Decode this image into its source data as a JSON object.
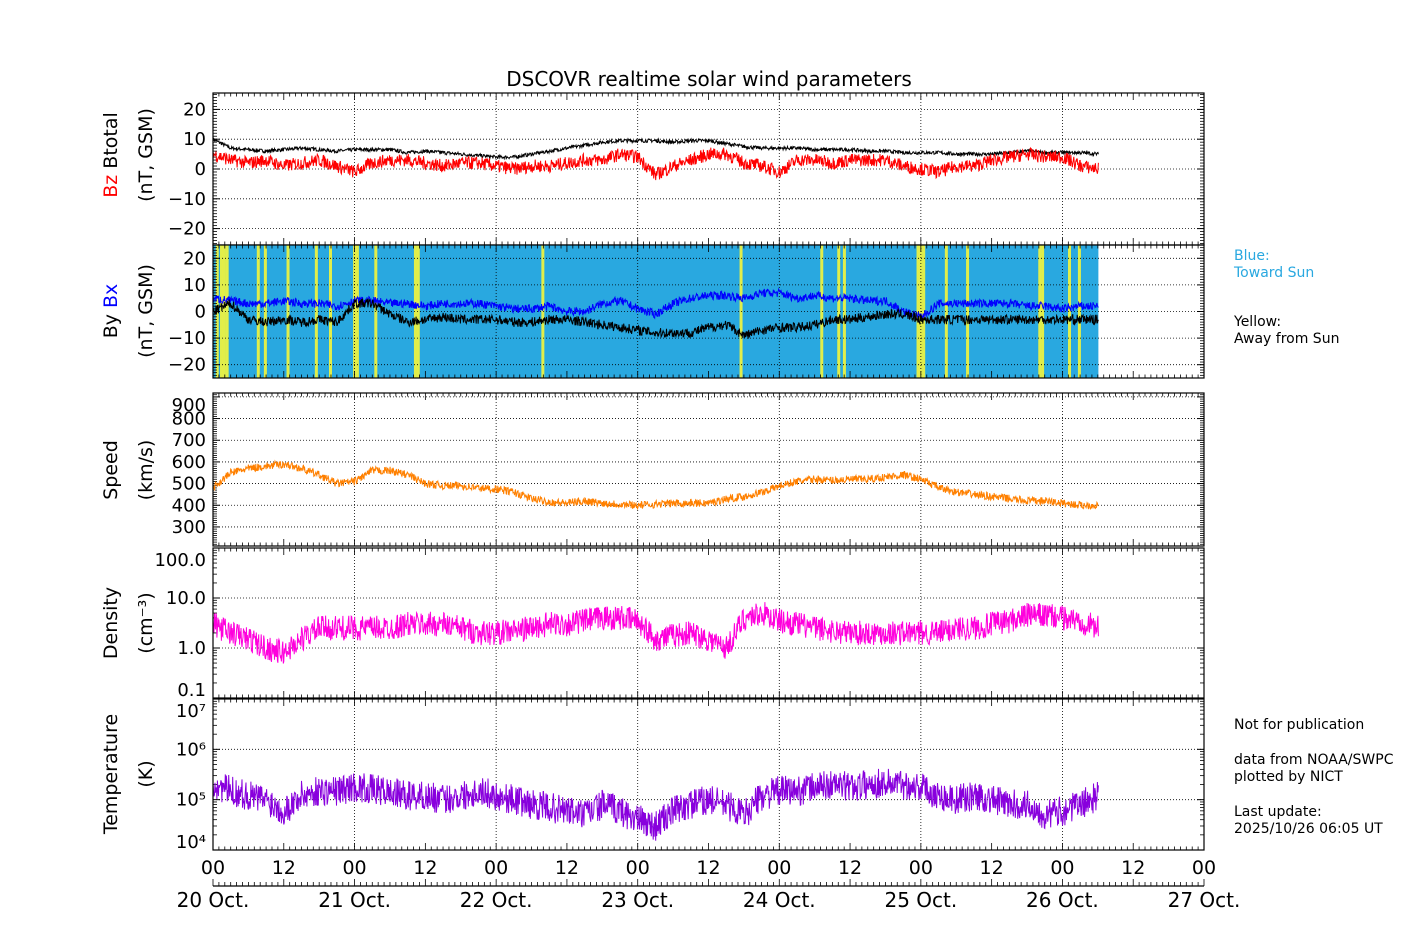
{
  "chart_data": {
    "type": "line",
    "title": "DSCOVR realtime solar wind parameters",
    "x_axis": {
      "unit": "days since 20 Oct 00 UT",
      "range": [
        0,
        7
      ],
      "hour_tick_labels": [
        "00",
        "12",
        "00",
        "12",
        "00",
        "12",
        "00",
        "12",
        "00",
        "12",
        "00",
        "12",
        "00",
        "12",
        "00"
      ],
      "date_labels": [
        "20 Oct.",
        "21 Oct.",
        "22 Oct.",
        "23 Oct.",
        "24 Oct.",
        "25 Oct.",
        "26 Oct.",
        "27 Oct."
      ],
      "data_end_day": 6.254
    },
    "panels": [
      {
        "id": "btotal_bz",
        "ylabel_parts": [
          {
            "text": "Bz",
            "color": "#ff0000"
          },
          {
            "text": "Btotal",
            "color": "#000000"
          }
        ],
        "ylabel_unit": "(nT, GSM)",
        "scale": "linear",
        "ylim": [
          -25.5,
          25.5
        ],
        "ticks": [
          20,
          10,
          0,
          -10,
          -20
        ],
        "tick_labels": [
          "20",
          "10",
          "0",
          "−10",
          "−20"
        ],
        "series": [
          {
            "name": "Btotal",
            "color": "#000000",
            "values": [
              10,
              7,
              6.5,
              6,
              6.5,
              7,
              6.5,
              6,
              6.5,
              6.5,
              6.5,
              5.5,
              6,
              5.5,
              5,
              4.5,
              4,
              4,
              5,
              6,
              7,
              8,
              9,
              9.5,
              9.5,
              9.5,
              9,
              9.5,
              9.5,
              8.5,
              7.5,
              7,
              7,
              7,
              6.5,
              6.5,
              6.5,
              6,
              6,
              5.5,
              5.5,
              5.5,
              5,
              5,
              5,
              5.5,
              6,
              5.5,
              5.5,
              5.5,
              5
            ]
          },
          {
            "name": "Bz",
            "color": "#ff0000",
            "values": [
              5,
              3,
              2,
              3,
              1,
              2,
              3,
              1,
              -1,
              2,
              3,
              3,
              2,
              1,
              2,
              2,
              1,
              0,
              1,
              1,
              2,
              3,
              3,
              5,
              4,
              -2,
              1,
              3,
              5,
              5,
              2,
              1,
              -1,
              3,
              3,
              2,
              3,
              3,
              3,
              1,
              0,
              -1,
              1,
              1,
              3,
              4,
              5,
              4,
              4,
              1,
              0
            ]
          }
        ]
      },
      {
        "id": "by_bx",
        "ylabel_parts": [
          {
            "text": "By",
            "color": "#000000"
          },
          {
            "text": "Bx",
            "color": "#0000ff"
          }
        ],
        "ylabel_unit": "(nT, GSM)",
        "scale": "linear",
        "ylim": [
          -25,
          25
        ],
        "ticks": [
          20,
          10,
          0,
          -10,
          -20
        ],
        "tick_labels": [
          "20",
          "10",
          "0",
          "−10",
          "−20"
        ],
        "background": {
          "toward_color": "#29a8e0",
          "away_color": "#f5f53a",
          "away_sector_days": [
            0.03,
            0.06,
            0.08,
            0.1,
            0.32,
            0.37,
            0.53,
            0.73,
            0.83,
            1.0,
            1.02,
            1.15,
            1.43,
            1.45,
            2.33,
            3.73,
            4.3,
            4.42,
            4.46,
            4.98,
            5.0,
            5.02,
            5.18,
            5.33,
            5.84,
            5.86,
            6.05,
            6.12
          ]
        },
        "series": [
          {
            "name": "Bx",
            "color": "#0000ff",
            "values": [
              5,
              4,
              3,
              3,
              4,
              3,
              3,
              2,
              4,
              4,
              3,
              3,
              2,
              3,
              3,
              3,
              2,
              1,
              1,
              2,
              0,
              0,
              3,
              4,
              1,
              -1,
              3,
              5,
              6,
              6,
              5,
              7,
              7,
              5,
              6,
              5,
              5,
              4,
              4,
              0,
              -2,
              3,
              3,
              3,
              3,
              3,
              2,
              2,
              1,
              2,
              2
            ]
          },
          {
            "name": "By",
            "color": "#000000",
            "values": [
              0,
              3,
              -3,
              -4,
              -3,
              -4,
              -3,
              -4,
              3,
              3,
              -1,
              -4,
              -3,
              -2,
              -3,
              -3,
              -3,
              -4,
              -4,
              -3,
              -3,
              -4,
              -5,
              -6,
              -7,
              -8,
              -8,
              -8,
              -6,
              -5,
              -9,
              -7,
              -6,
              -6,
              -5,
              -3,
              -3,
              -2,
              -1,
              -1,
              -3,
              -3,
              -3,
              -3,
              -3,
              -3,
              -3,
              -3,
              -3,
              -3,
              -3
            ]
          }
        ]
      },
      {
        "id": "speed",
        "ylabel_parts": [
          {
            "text": "Speed",
            "color": "#000000"
          }
        ],
        "ylabel_unit": "(km/s)",
        "scale": "linear",
        "ylim": [
          212,
          918
        ],
        "ticks": [
          900,
          800,
          700,
          600,
          500,
          400,
          300
        ],
        "tick_labels": [
          "900",
          "800",
          "700",
          "600",
          "500",
          "400",
          "300"
        ],
        "series": [
          {
            "name": "Speed",
            "color": "#ff8000",
            "values": [
              480,
              550,
              570,
              580,
              590,
              570,
              540,
              500,
              510,
              560,
              560,
              540,
              500,
              490,
              490,
              480,
              475,
              460,
              430,
              415,
              410,
              420,
              410,
              405,
              400,
              405,
              410,
              410,
              410,
              430,
              440,
              460,
              490,
              510,
              520,
              515,
              520,
              520,
              530,
              540,
              520,
              480,
              460,
              450,
              440,
              430,
              420,
              420,
              410,
              400,
              400
            ]
          }
        ]
      },
      {
        "id": "density",
        "ylabel_parts": [
          {
            "text": "Density",
            "color": "#000000"
          }
        ],
        "ylabel_unit": "(cm⁻³)",
        "scale": "log",
        "ylim": [
          0.1,
          100
        ],
        "ticks": [
          100,
          10,
          1,
          0.1
        ],
        "tick_labels": [
          "100.0",
          "10.0",
          "1.0",
          "0.1"
        ],
        "series": [
          {
            "name": "Density",
            "color": "#ff00dd",
            "values": [
              3,
              2,
              1.5,
              1,
              0.8,
              1.5,
              2.5,
              2.5,
              2.5,
              2.5,
              2.5,
              3,
              3,
              3,
              2.5,
              2,
              2,
              2.2,
              2.5,
              3,
              3,
              3.5,
              4,
              4,
              3.5,
              1.5,
              1.8,
              2,
              1.5,
              1,
              4,
              5,
              3.5,
              3,
              2.5,
              2.2,
              2,
              2,
              2,
              2,
              2,
              2,
              2.5,
              2.5,
              3,
              3.5,
              4.5,
              4.5,
              4,
              3.5,
              2.5
            ]
          }
        ]
      },
      {
        "id": "temperature",
        "ylabel_parts": [
          {
            "text": "Temperature",
            "color": "#000000"
          }
        ],
        "ylabel_unit": "(K)",
        "scale": "log",
        "ylim": [
          10000,
          10000000
        ],
        "ticks": [
          10000000,
          1000000,
          100000,
          10000
        ],
        "tick_labels": [
          "10⁷",
          "10⁶",
          "10⁵",
          "10⁴"
        ],
        "series": [
          {
            "name": "Temperature",
            "color": "#8800dd",
            "values": [
              200000,
              150000,
              120000,
              100000,
              60000,
              120000,
              150000,
              150000,
              180000,
              160000,
              140000,
              120000,
              120000,
              100000,
              120000,
              150000,
              120000,
              100000,
              80000,
              70000,
              60000,
              50000,
              80000,
              60000,
              40000,
              30000,
              60000,
              80000,
              100000,
              80000,
              50000,
              120000,
              150000,
              150000,
              180000,
              200000,
              180000,
              200000,
              220000,
              200000,
              180000,
              120000,
              100000,
              120000,
              100000,
              80000,
              80000,
              50000,
              60000,
              80000,
              120000
            ]
          }
        ]
      }
    ]
  },
  "legend": {
    "blue_label": "Blue:",
    "blue_desc": "Toward Sun",
    "blue_color": "#29a8e0",
    "yellow_label": "Yellow:",
    "yellow_desc": "Away from Sun"
  },
  "notes": {
    "not_for_pub": "Not for publication",
    "source": "data from NOAA/SWPC",
    "plotted": "plotted by NICT",
    "update_label": "Last update:",
    "update_time": "2025/10/26 06:05 UT"
  }
}
